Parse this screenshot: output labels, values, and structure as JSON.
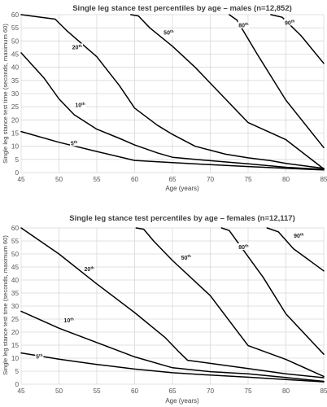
{
  "chart_data": [
    {
      "type": "line",
      "title": "Single leg stance test percentiles by age – males (n=12,852)",
      "xlabel": "Age (years)",
      "ylabel": "Single leg stance test time (seconds, maximum 60)",
      "xlim": [
        45,
        85
      ],
      "ylim": [
        0,
        60
      ],
      "x_ticks": [
        "45",
        "50",
        "55",
        "60",
        "65",
        "70",
        "75",
        "80",
        "85"
      ],
      "y_ticks": [
        "0",
        "5",
        "10",
        "15",
        "20",
        "25",
        "30",
        "35",
        "40",
        "45",
        "50",
        "55",
        "60"
      ],
      "grid": true,
      "series": [
        {
          "name": "5th",
          "points": [
            [
              45,
              15.6
            ],
            [
              50,
              11.5
            ],
            [
              55,
              8
            ],
            [
              60,
              4.6
            ],
            [
              65,
              3.8
            ],
            [
              70,
              3
            ],
            [
              75,
              2.3
            ],
            [
              80,
              1.6
            ],
            [
              85,
              1
            ]
          ]
        },
        {
          "name": "10th",
          "points": [
            [
              45,
              45.5
            ],
            [
              48,
              36
            ],
            [
              50,
              28
            ],
            [
              52,
              22
            ],
            [
              55,
              16.5
            ],
            [
              58,
              13
            ],
            [
              60,
              10.5
            ],
            [
              63,
              7.5
            ],
            [
              65,
              5.8
            ],
            [
              70,
              4.5
            ],
            [
              75,
              3.3
            ],
            [
              80,
              2
            ],
            [
              85,
              1.2
            ]
          ]
        },
        {
          "name": "20th",
          "points": [
            [
              45,
              60
            ],
            [
              49.5,
              58.3
            ],
            [
              51,
              54
            ],
            [
              55,
              44
            ],
            [
              58,
              33
            ],
            [
              60,
              24.5
            ],
            [
              63,
              18
            ],
            [
              65,
              14.5
            ],
            [
              68,
              10
            ],
            [
              70,
              8.5
            ],
            [
              72,
              7
            ],
            [
              75,
              5.6
            ],
            [
              78,
              4.5
            ],
            [
              80,
              3.5
            ],
            [
              85,
              1.6
            ]
          ]
        },
        {
          "name": "50th",
          "points": [
            [
              59.5,
              60
            ],
            [
              60.5,
              59.5
            ],
            [
              62,
              55
            ],
            [
              65,
              48
            ],
            [
              68,
              40
            ],
            [
              72,
              28
            ],
            [
              75,
              19
            ],
            [
              80,
              12.5
            ],
            [
              85,
              1.4
            ]
          ]
        },
        {
          "name": "80th",
          "points": [
            [
              72.5,
              60
            ],
            [
              73.5,
              58
            ],
            [
              76.2,
              45
            ],
            [
              80,
              27.5
            ],
            [
              85,
              9.5
            ]
          ]
        },
        {
          "name": "90th",
          "points": [
            [
              78,
              60
            ],
            [
              79.5,
              59
            ],
            [
              82,
              52
            ],
            [
              85,
              41.5
            ]
          ]
        }
      ]
    },
    {
      "type": "line",
      "title": "Single leg stance test percentiles by age – females (n=12,117)",
      "xlabel": "Age (years)",
      "ylabel": "Single leg stance test time (seconds, maximum 60)",
      "xlim": [
        45,
        85
      ],
      "ylim": [
        0,
        60
      ],
      "x_ticks": [
        "45",
        "50",
        "55",
        "60",
        "65",
        "70",
        "75",
        "80",
        "85"
      ],
      "y_ticks": [
        "0",
        "5",
        "10",
        "15",
        "20",
        "25",
        "30",
        "35",
        "40",
        "45",
        "50",
        "55",
        "60"
      ],
      "grid": true,
      "series": [
        {
          "name": "5th",
          "points": [
            [
              45,
              12
            ],
            [
              50,
              9.6
            ],
            [
              55,
              7.6
            ],
            [
              60,
              5.8
            ],
            [
              65,
              4.4
            ],
            [
              70,
              3.5
            ],
            [
              75,
              2.7
            ],
            [
              80,
              1.8
            ],
            [
              85,
              0.9
            ]
          ]
        },
        {
          "name": "10th",
          "points": [
            [
              45,
              28
            ],
            [
              50,
              21.5
            ],
            [
              55,
              16
            ],
            [
              60,
              10.5
            ],
            [
              65,
              6.3
            ],
            [
              70,
              4.8
            ],
            [
              75,
              4
            ],
            [
              80,
              2.6
            ],
            [
              85,
              1.1
            ]
          ]
        },
        {
          "name": "20th",
          "points": [
            [
              45,
              60
            ],
            [
              50,
              50
            ],
            [
              55,
              38.5
            ],
            [
              60,
              27.5
            ],
            [
              64,
              18
            ],
            [
              66,
              12
            ],
            [
              67,
              9.2
            ],
            [
              70,
              8
            ],
            [
              75,
              6
            ],
            [
              80,
              4
            ],
            [
              85,
              2.5
            ]
          ]
        },
        {
          "name": "50th",
          "points": [
            [
              60.2,
              60
            ],
            [
              61.2,
              59.5
            ],
            [
              62.5,
              55
            ],
            [
              65,
              47.5
            ],
            [
              70,
              34
            ],
            [
              75,
              14.8
            ],
            [
              80,
              9.5
            ],
            [
              85,
              3
            ]
          ]
        },
        {
          "name": "80th",
          "points": [
            [
              71.5,
              60
            ],
            [
              72.5,
              59
            ],
            [
              74,
              53
            ],
            [
              77,
              41
            ],
            [
              80,
              27
            ],
            [
              85,
              11.5
            ]
          ]
        },
        {
          "name": "90th",
          "points": [
            [
              77.5,
              60
            ],
            [
              79,
              58.5
            ],
            [
              81,
              52
            ],
            [
              85,
              43.5
            ]
          ]
        }
      ]
    }
  ],
  "percentile_labels": [
    {
      "num": "5",
      "sup": "th"
    },
    {
      "num": "10",
      "sup": "th"
    },
    {
      "num": "20",
      "sup": "th"
    },
    {
      "num": "50",
      "sup": "th"
    },
    {
      "num": "80",
      "sup": "th"
    },
    {
      "num": "90",
      "sup": "th"
    }
  ]
}
